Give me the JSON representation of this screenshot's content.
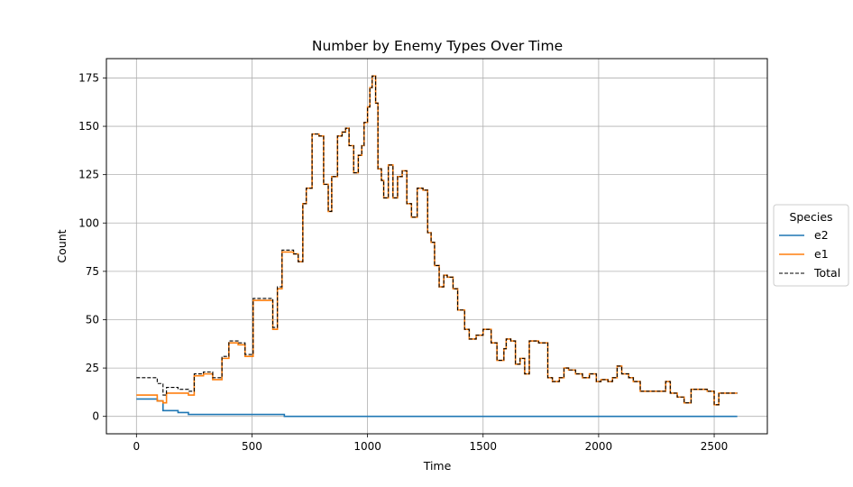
{
  "chart_data": {
    "type": "line",
    "title": "Number by Enemy Types Over Time",
    "xlabel": "Time",
    "ylabel": "Count",
    "xlim": [
      -130,
      2730
    ],
    "ylim": [
      -9,
      185
    ],
    "xticks": [
      0,
      500,
      1000,
      1500,
      2000,
      2500
    ],
    "yticks": [
      0,
      25,
      50,
      75,
      100,
      125,
      150,
      175
    ],
    "grid": true,
    "legend": {
      "title": "Species",
      "placement": "outside-right",
      "entries": [
        "e2",
        "e1",
        "Total"
      ]
    },
    "series": [
      {
        "name": "e2",
        "color": "#1f77b4",
        "style": "solid",
        "step": true,
        "x": [
          0,
          90,
          115,
          180,
          225,
          630,
          640,
          2600
        ],
        "y": [
          9,
          8,
          3,
          2,
          1,
          1,
          0,
          0
        ]
      },
      {
        "name": "e1",
        "color": "#ff7f0e",
        "style": "solid",
        "step": true,
        "x": [
          0,
          90,
          115,
          130,
          180,
          225,
          250,
          290,
          330,
          370,
          400,
          440,
          470,
          505,
          560,
          590,
          610,
          630,
          680,
          700,
          720,
          735,
          760,
          790,
          810,
          830,
          845,
          870,
          890,
          905,
          920,
          940,
          960,
          975,
          985,
          1000,
          1010,
          1020,
          1035,
          1045,
          1060,
          1070,
          1090,
          1110,
          1130,
          1150,
          1170,
          1190,
          1215,
          1240,
          1260,
          1275,
          1290,
          1310,
          1330,
          1345,
          1370,
          1390,
          1420,
          1440,
          1470,
          1500,
          1535,
          1560,
          1590,
          1600,
          1620,
          1640,
          1660,
          1680,
          1700,
          1720,
          1740,
          1780,
          1800,
          1830,
          1850,
          1870,
          1900,
          1930,
          1960,
          1990,
          2010,
          2040,
          2060,
          2080,
          2100,
          2130,
          2150,
          2180,
          2210,
          2250,
          2290,
          2310,
          2340,
          2370,
          2400,
          2430,
          2470,
          2500,
          2520,
          2600
        ],
        "y": [
          11,
          8,
          7,
          12,
          12,
          11,
          21,
          22,
          19,
          30,
          38,
          37,
          31,
          60,
          60,
          45,
          66,
          85,
          84,
          80,
          110,
          118,
          146,
          145,
          120,
          106,
          124,
          145,
          147,
          149,
          140,
          126,
          135,
          140,
          152,
          160,
          170,
          176,
          162,
          128,
          122,
          113,
          130,
          113,
          124,
          127,
          110,
          103,
          118,
          117,
          95,
          90,
          78,
          67,
          73,
          72,
          66,
          55,
          45,
          40,
          42,
          45,
          38,
          29,
          35,
          40,
          39,
          27,
          30,
          22,
          39,
          39,
          38,
          20,
          18,
          20,
          25,
          24,
          22,
          20,
          22,
          18,
          19,
          18,
          20,
          26,
          22,
          20,
          18,
          13,
          13,
          13,
          18,
          12,
          10,
          7,
          14,
          14,
          13,
          6,
          12,
          12
        ]
      },
      {
        "name": "Total",
        "color": "#000000",
        "style": "dashed",
        "step": true,
        "x": [
          0,
          90,
          115,
          130,
          180,
          225,
          250,
          290,
          330,
          370,
          400,
          440,
          470,
          505,
          560,
          590,
          610,
          630,
          680,
          700,
          720,
          735,
          760,
          790,
          810,
          830,
          845,
          870,
          890,
          905,
          920,
          940,
          960,
          975,
          985,
          1000,
          1010,
          1020,
          1035,
          1045,
          1060,
          1070,
          1090,
          1110,
          1130,
          1150,
          1170,
          1190,
          1215,
          1240,
          1260,
          1275,
          1290,
          1310,
          1330,
          1345,
          1370,
          1390,
          1420,
          1440,
          1470,
          1500,
          1535,
          1560,
          1590,
          1600,
          1620,
          1640,
          1660,
          1680,
          1700,
          1720,
          1740,
          1780,
          1800,
          1830,
          1850,
          1870,
          1900,
          1930,
          1960,
          1990,
          2010,
          2040,
          2060,
          2080,
          2100,
          2130,
          2150,
          2180,
          2210,
          2250,
          2290,
          2310,
          2340,
          2370,
          2400,
          2430,
          2470,
          2500,
          2520,
          2600
        ],
        "y": [
          20,
          17,
          11,
          15,
          14,
          13,
          22,
          23,
          20,
          31,
          39,
          38,
          32,
          61,
          61,
          46,
          67,
          86,
          84,
          80,
          110,
          118,
          146,
          145,
          120,
          106,
          124,
          145,
          147,
          149,
          140,
          126,
          135,
          140,
          152,
          160,
          170,
          176,
          162,
          128,
          122,
          113,
          130,
          113,
          124,
          127,
          110,
          103,
          118,
          117,
          95,
          90,
          78,
          67,
          73,
          72,
          66,
          55,
          45,
          40,
          42,
          45,
          38,
          29,
          35,
          40,
          39,
          27,
          30,
          22,
          39,
          39,
          38,
          20,
          18,
          20,
          25,
          24,
          22,
          20,
          22,
          18,
          19,
          18,
          20,
          26,
          22,
          20,
          18,
          13,
          13,
          13,
          18,
          12,
          10,
          7,
          14,
          14,
          13,
          6,
          12,
          12
        ]
      }
    ]
  }
}
